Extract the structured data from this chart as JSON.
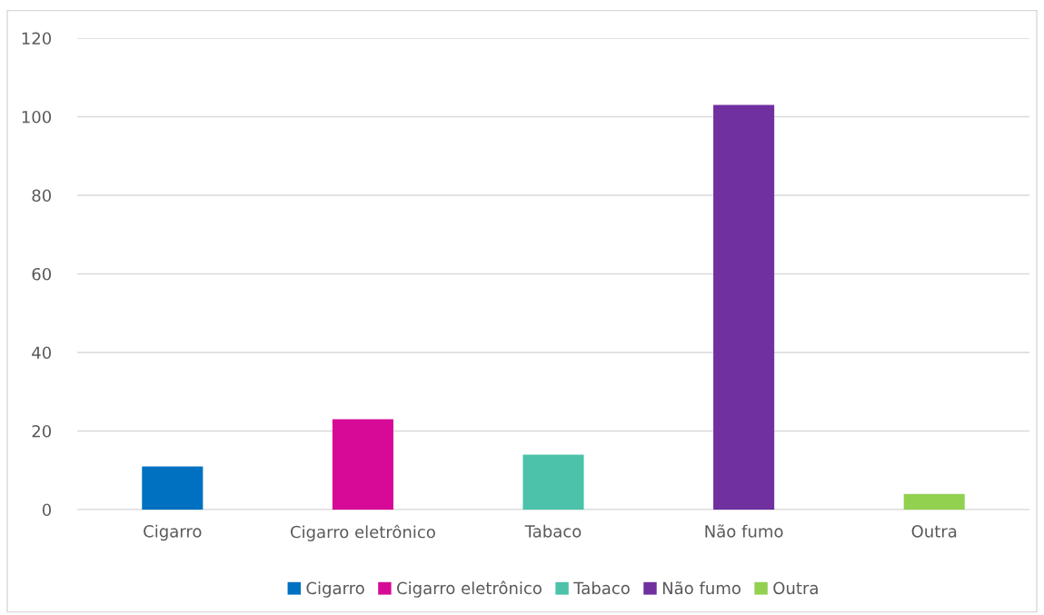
{
  "chart_data": {
    "type": "bar",
    "categories": [
      "Cigarro",
      "Cigarro eletrônico",
      "Tabaco",
      "Não fumo",
      "Outra"
    ],
    "series": [
      {
        "name": "Cigarro",
        "color": "#0070c0",
        "values": [
          11,
          null,
          null,
          null,
          null
        ]
      },
      {
        "name": "Cigarro eletrônico",
        "color": "#d60a96",
        "values": [
          null,
          23,
          null,
          null,
          null
        ]
      },
      {
        "name": "Tabaco",
        "color": "#4bc2a9",
        "values": [
          null,
          null,
          14,
          null,
          null
        ]
      },
      {
        "name": "Não fumo",
        "color": "#7030a0",
        "values": [
          null,
          null,
          null,
          103,
          null
        ]
      },
      {
        "name": "Outra",
        "color": "#92d050",
        "values": [
          null,
          null,
          null,
          null,
          4
        ]
      }
    ],
    "ylim": [
      0,
      120
    ],
    "yticks": [
      0,
      20,
      40,
      60,
      80,
      100,
      120
    ],
    "grid": "y",
    "legend": "bottom"
  }
}
